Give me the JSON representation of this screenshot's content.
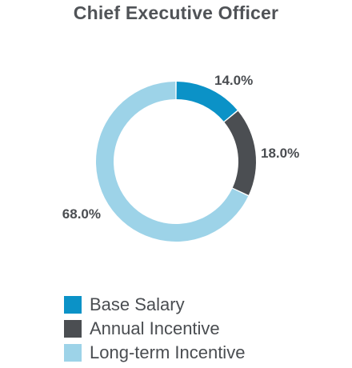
{
  "chart_data": {
    "type": "pie",
    "title": "Chief Executive Officer",
    "donut": true,
    "legend_position": "bottom",
    "slices": [
      {
        "label": "Base Salary",
        "value": 14.0,
        "value_label": "14.0%",
        "color": "#0b92c7"
      },
      {
        "label": "Annual Incentive",
        "value": 18.0,
        "value_label": "18.0%",
        "color": "#4b4e52"
      },
      {
        "label": "Long-term Incentive",
        "value": 68.0,
        "value_label": "68.0%",
        "color": "#9dd3e8"
      }
    ]
  }
}
